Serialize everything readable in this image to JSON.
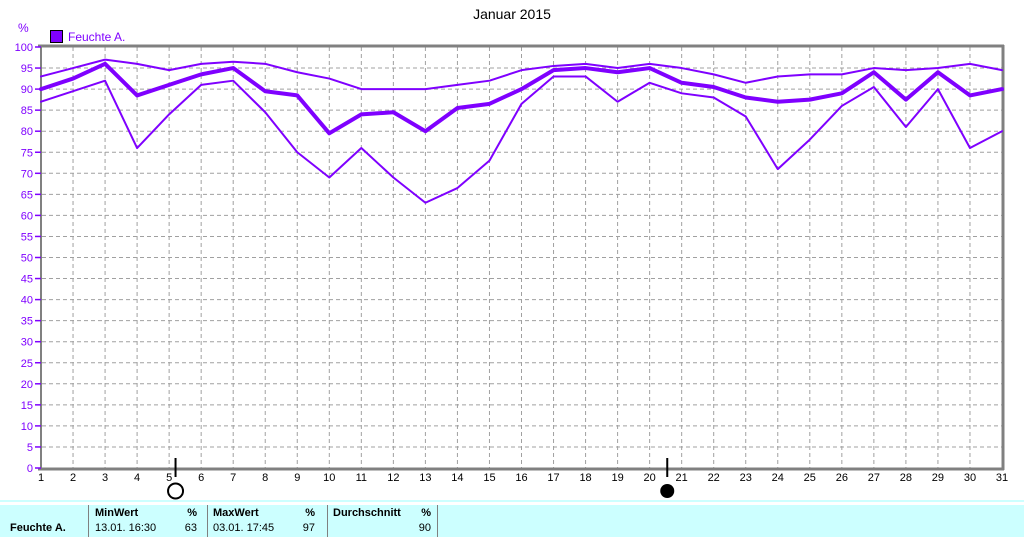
{
  "title": "Januar 2015",
  "legend": {
    "label": "Feuchte A.",
    "color": "#7F00FF"
  },
  "y_axis": {
    "unit": "%",
    "min": 0,
    "max": 100,
    "step": 5,
    "tick_labels": [
      "0",
      "5",
      "10",
      "15",
      "20",
      "25",
      "30",
      "35",
      "40",
      "45",
      "50",
      "55",
      "60",
      "65",
      "70",
      "75",
      "80",
      "85",
      "90",
      "95",
      "100"
    ]
  },
  "x_axis": {
    "labels": [
      "1",
      "2",
      "3",
      "4",
      "5",
      "6",
      "7",
      "8",
      "9",
      "10",
      "11",
      "12",
      "13",
      "14",
      "15",
      "16",
      "17",
      "18",
      "19",
      "20",
      "21",
      "22",
      "23",
      "24",
      "25",
      "26",
      "27",
      "28",
      "29",
      "30",
      "31"
    ]
  },
  "colors": {
    "series": "#7F00FF",
    "axis_text": "#7F00FF",
    "day_text": "#000000",
    "grid": "#A0A0A0",
    "border": "#808080",
    "table_bg": "#CCFFFF"
  },
  "chart_data": {
    "type": "line",
    "title": "Januar 2015",
    "unit": "%",
    "ylim": [
      0,
      100
    ],
    "grid": true,
    "legend_position": "top-left",
    "x": [
      1,
      2,
      3,
      4,
      5,
      6,
      7,
      8,
      9,
      10,
      11,
      12,
      13,
      14,
      15,
      16,
      17,
      18,
      19,
      20,
      21,
      22,
      23,
      24,
      25,
      26,
      27,
      28,
      29,
      30,
      31
    ],
    "series": [
      {
        "name": "daily-max",
        "width": 2,
        "values": [
          93,
          95,
          97,
          96,
          94.5,
          96,
          96.5,
          96,
          94,
          92.5,
          90,
          90,
          90,
          91,
          92,
          94.5,
          95.5,
          96,
          95,
          96,
          95,
          93.5,
          91.5,
          93,
          93.5,
          93.5,
          95,
          94.5,
          95,
          96,
          94.5
        ]
      },
      {
        "name": "daily-min",
        "width": 2,
        "values": [
          87,
          89.5,
          92,
          76,
          84,
          91,
          92,
          84.5,
          75,
          69,
          76,
          69,
          63,
          66.5,
          73,
          86.5,
          93,
          93,
          87,
          91.5,
          89,
          88,
          83.5,
          71,
          78,
          86,
          90.5,
          81,
          90,
          76,
          80
        ]
      },
      {
        "name": "daily-mean",
        "width": 4,
        "values": [
          90,
          92.5,
          96,
          88.5,
          91,
          93.5,
          95,
          89.5,
          88.5,
          79.5,
          84,
          84.5,
          80,
          85.5,
          86.5,
          90,
          94.5,
          95,
          94,
          95,
          91.5,
          90.5,
          88,
          87,
          87.5,
          89,
          94,
          87.5,
          94,
          88.5,
          90
        ]
      }
    ],
    "moon_markers": [
      {
        "day": 5.2,
        "phase": "full-moon"
      },
      {
        "day": 20.55,
        "phase": "new-moon"
      }
    ]
  },
  "summary_table": {
    "row_label": "Feuchte A.",
    "columns": [
      {
        "header": "MinWert",
        "unit": "%",
        "value_text": "13.01.  16:30",
        "value_num": "63"
      },
      {
        "header": "MaxWert",
        "unit": "%",
        "value_text": "03.01.  17:45",
        "value_num": "97"
      },
      {
        "header": "Durchschnitt",
        "unit": "%",
        "value_text": "",
        "value_num": "90"
      }
    ]
  }
}
